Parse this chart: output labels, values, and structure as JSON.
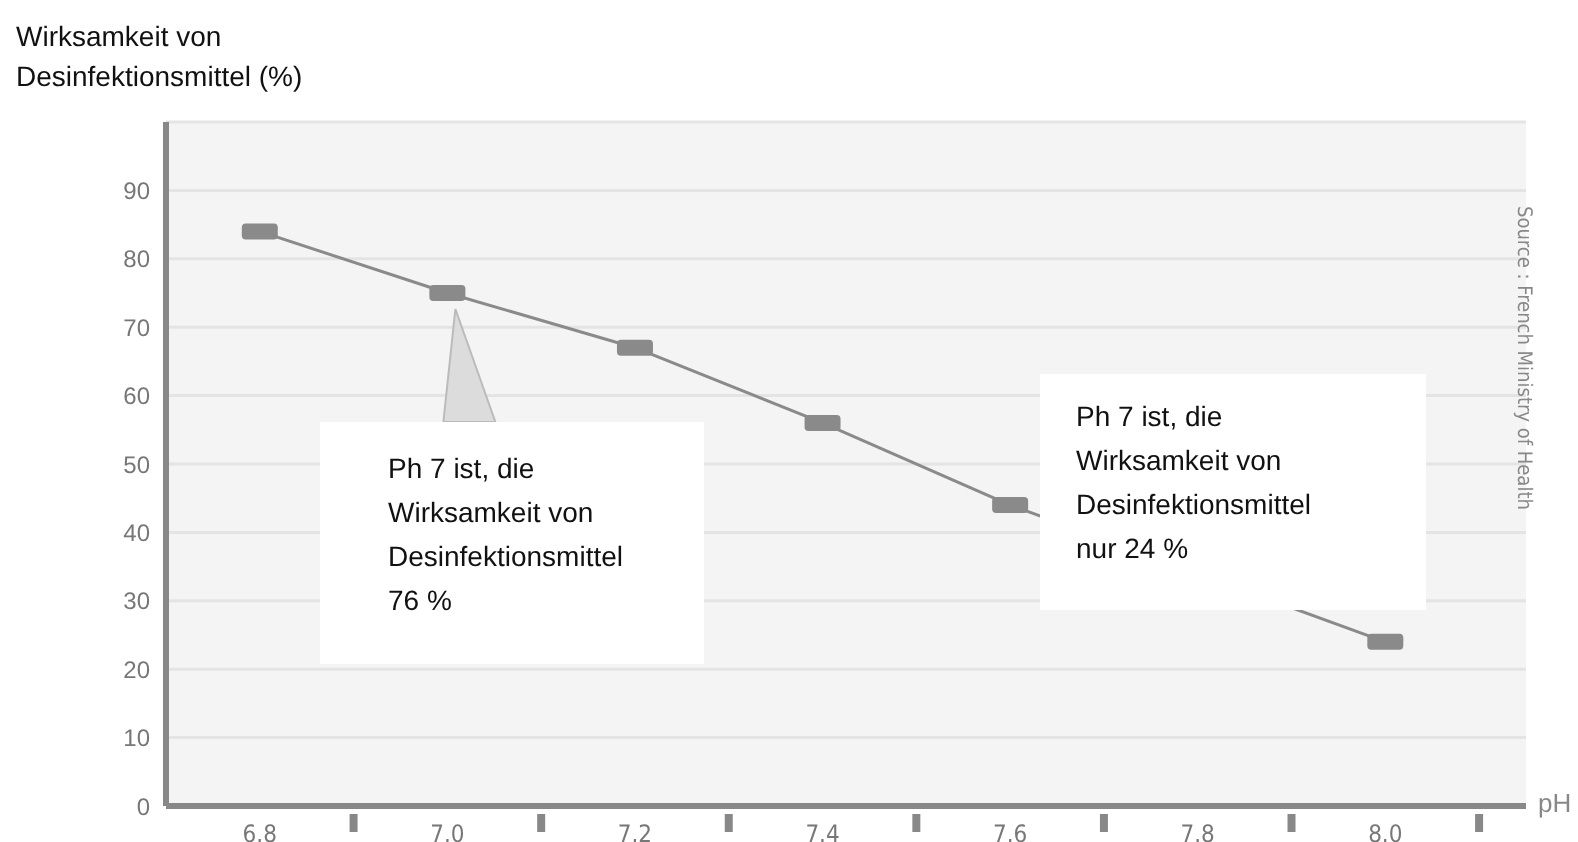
{
  "chart_data": {
    "type": "line",
    "ylabel": "Wirksamkeit von Desinfektionsmittel (%)",
    "xlabel": "pH",
    "x": [
      6.8,
      7.0,
      7.2,
      7.4,
      7.6,
      7.8,
      8.0
    ],
    "series": [
      {
        "color": "#8a8a8a",
        "values": [
          84,
          75,
          67,
          56,
          44,
          null,
          24
        ]
      }
    ],
    "xlim": [
      6.7,
      8.15
    ],
    "xticks": [
      6.8,
      {
        "value": 6.9,
        "label": null
      },
      "7.0",
      {
        "value": 7.1,
        "label": null
      },
      7.2,
      {
        "value": 7.3,
        "label": null
      },
      7.4,
      {
        "value": 7.5,
        "label": null
      },
      7.6,
      {
        "value": 7.7,
        "label": null
      },
      7.8,
      {
        "value": 7.9,
        "label": null
      },
      "8.0",
      {
        "value": 8.1,
        "label": null
      }
    ],
    "ylim": [
      0,
      100
    ],
    "yticks": [
      0,
      10,
      20,
      30,
      40,
      50,
      60,
      70,
      80,
      90
    ],
    "grid": "y",
    "marker": "square",
    "line_style": "solid",
    "annotations": [
      {
        "text": "Ph 7 ist, die Wirksamkeit von Desinfektionsmittel 76 %",
        "x": 7.0,
        "y": 75
      },
      "Ph 7 ist, die Wirksamkeit von Desinfektionsmittel nur 24 %",
      "Source : French Ministry of Health"
    ]
  }
}
